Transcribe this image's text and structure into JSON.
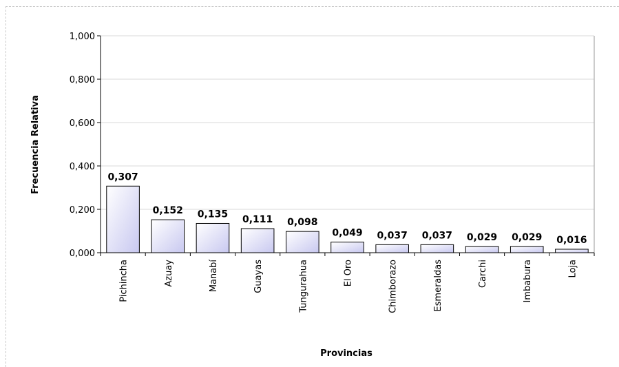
{
  "chart_data": {
    "type": "bar",
    "title": "",
    "xlabel": "Provincias",
    "ylabel": "Frecuencia Relativa",
    "categories": [
      "Pichincha",
      "Azuay",
      "Manabí",
      "Guayas",
      "Tungurahua",
      "El Oro",
      "Chimborazo",
      "Esmeraldas",
      "Carchi",
      "Imbabura",
      "Loja"
    ],
    "values": [
      0.307,
      0.152,
      0.135,
      0.111,
      0.098,
      0.049,
      0.037,
      0.037,
      0.029,
      0.029,
      0.016
    ],
    "value_labels": [
      "0,307",
      "0,152",
      "0,135",
      "0,111",
      "0,098",
      "0,049",
      "0,037",
      "0,037",
      "0,029",
      "0,029",
      "0,016"
    ],
    "ylim": [
      0,
      1
    ],
    "yticks": [
      0,
      0.2,
      0.4,
      0.6,
      0.8,
      1.0
    ],
    "ytick_labels": [
      "0,000",
      "0,200",
      "0,400",
      "0,600",
      "0,800",
      "1,000"
    ],
    "grid": true,
    "legend": "none",
    "bar_gradient": [
      "#ffffff",
      "#c8c8f0"
    ],
    "bar_border_color": "#000000",
    "gridline_color": "#d8d8d8"
  }
}
